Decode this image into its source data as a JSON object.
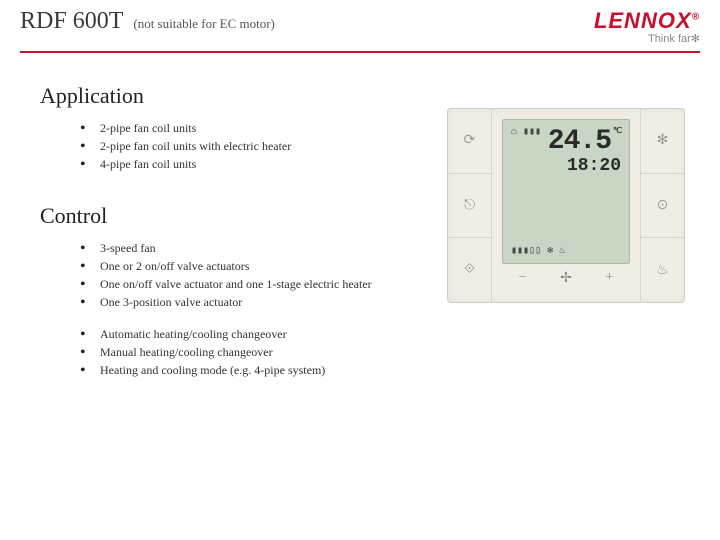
{
  "header": {
    "product_title": "RDF 600T",
    "product_subtitle": "(not suitable for EC motor)",
    "logo_main": "LENNOX",
    "logo_tagline": "Think far"
  },
  "sections": {
    "application": {
      "heading": "Application",
      "items": [
        "2-pipe fan coil units",
        "2-pipe fan coil units with electric heater",
        "4-pipe fan coil units"
      ]
    },
    "control": {
      "heading": "Control",
      "group1": [
        "3-speed fan",
        "One or 2 on/off valve actuators",
        "One on/off valve actuator and one 1-stage electric heater",
        "One 3-position valve actuator"
      ],
      "group2": [
        "Automatic heating/cooling changeover",
        "Manual heating/cooling changeover",
        "Heating and cooling mode (e.g. 4-pipe system)"
      ]
    }
  },
  "device": {
    "temperature": "24.5",
    "temp_unit": "℃",
    "time": "18:20",
    "left_buttons": [
      "⟳",
      "⎋",
      "⟐"
    ],
    "right_buttons": [
      "✻",
      "⊙",
      "♨"
    ],
    "bottom_buttons": [
      "−",
      "✢",
      "+"
    ],
    "lcd_bottom_icons": "▮▮▮▯▯ ✻ ♨",
    "lcd_top_icon": "⌂ ▮▮▮"
  },
  "colors": {
    "accent": "#c8102e",
    "text": "#333333",
    "lcd_bg": "#c9d6c4",
    "device_bg": "#f0ede5"
  }
}
